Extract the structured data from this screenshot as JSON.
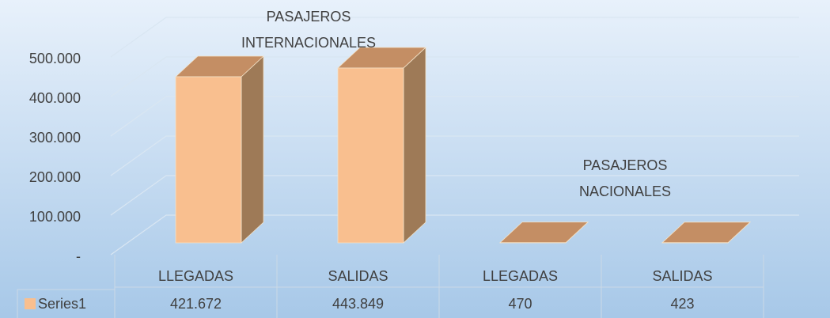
{
  "chart_data": {
    "type": "bar3d",
    "categories": [
      "LLEGADAS",
      "SALIDAS",
      "LLEGADAS",
      "SALIDAS"
    ],
    "series": [
      {
        "name": "Series1",
        "color": "#f9bf8f",
        "values": [
          421672,
          443849,
          470,
          423
        ],
        "value_labels": [
          "421.672",
          "443.849",
          "470",
          "423"
        ]
      }
    ],
    "ylim": [
      0,
      500000
    ],
    "yticks": [
      {
        "value": 0,
        "label": "-"
      },
      {
        "value": 100000,
        "label": "100.000"
      },
      {
        "value": 200000,
        "label": "200.000"
      },
      {
        "value": 300000,
        "label": "300.000"
      },
      {
        "value": 400000,
        "label": "400.000"
      },
      {
        "value": 500000,
        "label": "500.000"
      }
    ],
    "grid": true,
    "annotations": [
      {
        "lines": [
          "PASAJEROS",
          "INTERNACIONALES"
        ]
      },
      {
        "lines": [
          "PASAJEROS",
          "NACIONALES"
        ]
      }
    ]
  }
}
